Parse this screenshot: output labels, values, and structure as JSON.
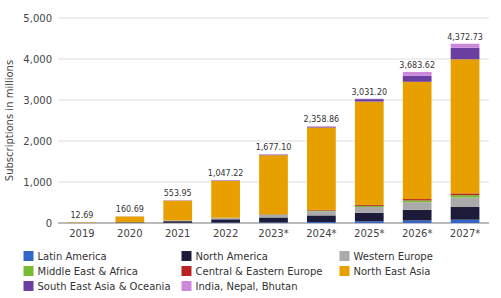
{
  "chart_data": {
    "type": "bar",
    "stacked": true,
    "categories": [
      "2019",
      "2020",
      "2021",
      "2022",
      "2023*",
      "2024*",
      "2025*",
      "2026*",
      "2027*"
    ],
    "series": [
      {
        "name": "Latin America",
        "color": "#3366CC",
        "values": [
          0.5,
          2.0,
          5.0,
          10.0,
          15.0,
          25.0,
          40.0,
          60.0,
          80.0
        ]
      },
      {
        "name": "North America",
        "color": "#1C1C3A",
        "values": [
          1.0,
          12.0,
          40.0,
          80.0,
          120.0,
          160.0,
          210.0,
          260.0,
          310.0
        ]
      },
      {
        "name": "Western Europe",
        "color": "#AAAAAA",
        "values": [
          0.5,
          5.0,
          15.0,
          30.0,
          60.0,
          100.0,
          140.0,
          185.0,
          230.0
        ]
      },
      {
        "name": "Middle East & Africa",
        "color": "#77BB33",
        "values": [
          0.1,
          0.5,
          2.0,
          5.0,
          10.0,
          18.0,
          28.0,
          45.0,
          60.0
        ]
      },
      {
        "name": "Central & Eastern Europe",
        "color": "#BB2222",
        "values": [
          0.09,
          0.69,
          1.95,
          4.22,
          8.1,
          15.86,
          23.2,
          33.62,
          42.73
        ]
      },
      {
        "name": "North East Asia",
        "color": "#E8A000",
        "values": [
          10.0,
          138.0,
          480.0,
          900.0,
          1440.0,
          2010.0,
          2520.0,
          2860.0,
          3270.0
        ]
      },
      {
        "name": "South East Asia & Oceania",
        "color": "#6B3FA0",
        "values": [
          0.1,
          1.5,
          5.0,
          10.0,
          15.0,
          20.0,
          60.0,
          150.0,
          280.0
        ]
      },
      {
        "name": "India, Nepal, Bhutan",
        "color": "#CC88DD",
        "values": [
          0.4,
          1.0,
          5.0,
          8.0,
          9.0,
          10.0,
          10.0,
          90.0,
          100.0
        ]
      }
    ],
    "totals": [
      12.69,
      160.69,
      553.95,
      1047.22,
      1677.1,
      2358.86,
      3031.2,
      3683.62,
      4372.73
    ],
    "total_labels": [
      "12.69",
      "160.69",
      "553.95",
      "1,047.22",
      "1,677.10",
      "2,358.86",
      "3,031.20",
      "3,683.62",
      "4,372.73"
    ],
    "ylabel": "Subscriptions in millions",
    "ylim": [
      0,
      5000
    ],
    "yticks": [
      0,
      {
        "value": 1000,
        "label": "1,000"
      },
      {
        "value": 2000,
        "label": "2,000"
      },
      {
        "value": 3000,
        "label": "3,000"
      },
      {
        "value": 4000,
        "label": "4,000"
      },
      {
        "value": 5000,
        "label": "5,000"
      }
    ],
    "grid": true,
    "legend": "bottom"
  }
}
